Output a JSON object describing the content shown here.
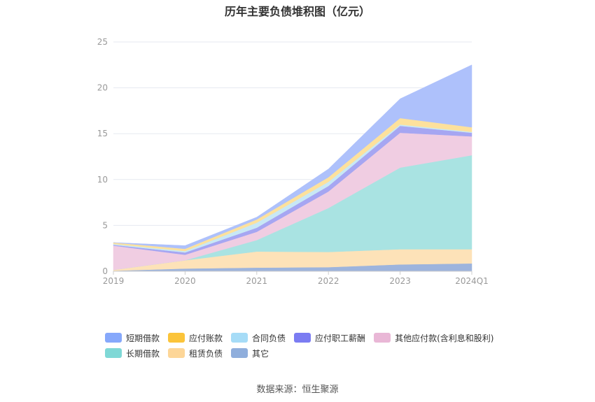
{
  "chart_data": {
    "type": "area",
    "title": "历年主要负债堆积图（亿元）",
    "categories": [
      "2019",
      "2020",
      "2021",
      "2022",
      "2023",
      "2024Q1"
    ],
    "ylim": [
      0,
      25
    ],
    "yticks": [
      "0",
      "5",
      "10",
      "15",
      "20",
      "25"
    ],
    "grid": true,
    "legend_position": "bottom",
    "series": [
      {
        "name": "其它",
        "color": "#9db4dd",
        "values": [
          0.05,
          0.3,
          0.4,
          0.45,
          0.75,
          0.85
        ]
      },
      {
        "name": "租赁负债",
        "color": "#fde2b8",
        "values": [
          0.1,
          0.9,
          1.75,
          1.65,
          1.65,
          1.55
        ]
      },
      {
        "name": "长期借款",
        "color": "#a9e3e2",
        "values": [
          0.0,
          0.0,
          1.25,
          4.8,
          8.9,
          10.25
        ]
      },
      {
        "name": "其他应付款(含利息和股利)",
        "color": "#f0cde2",
        "values": [
          2.65,
          0.6,
          0.9,
          1.8,
          3.8,
          2.05
        ]
      },
      {
        "name": "应付职工薪酬",
        "color": "#a6a6f2",
        "values": [
          0.08,
          0.25,
          0.45,
          0.6,
          0.75,
          0.4
        ]
      },
      {
        "name": "合同负债",
        "color": "#c8e8f5",
        "values": [
          0.1,
          0.15,
          0.55,
          0.45,
          0.15,
          0.1
        ]
      },
      {
        "name": "应付账款",
        "color": "#fde19c",
        "values": [
          0.15,
          0.25,
          0.35,
          0.5,
          0.7,
          0.5
        ]
      },
      {
        "name": "短期借款",
        "color": "#aec1fb",
        "values": [
          0.0,
          0.35,
          0.25,
          0.9,
          2.1,
          6.8
        ]
      }
    ],
    "legend": [
      {
        "name": "短期借款",
        "color": "#86a8fb"
      },
      {
        "name": "应付账款",
        "color": "#fbc43a"
      },
      {
        "name": "合同负债",
        "color": "#a6dcf7"
      },
      {
        "name": "应付职工薪酬",
        "color": "#7b7cf2"
      },
      {
        "name": "其他应付款(含利息和股利)",
        "color": "#e9b7d6"
      },
      {
        "name": "长期借款",
        "color": "#7fd8d6"
      },
      {
        "name": "租赁负债",
        "color": "#fdd698"
      },
      {
        "name": "其它",
        "color": "#8faedc"
      }
    ]
  },
  "source": "数据来源：恒生聚源"
}
